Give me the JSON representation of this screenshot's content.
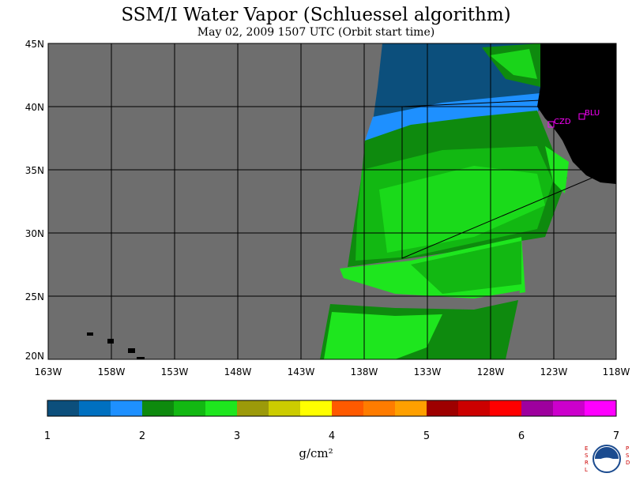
{
  "header": {
    "title": "SSM/I Water Vapor (Schluessel algorithm)",
    "subtitle": "May 02, 2009  1507 UTC  (Orbit start time)"
  },
  "map": {
    "lat_labels": [
      "45N",
      "40N",
      "35N",
      "30N",
      "25N",
      "20N"
    ],
    "lon_labels": [
      "163W",
      "158W",
      "153W",
      "148W",
      "143W",
      "138W",
      "133W",
      "128W",
      "123W",
      "118W"
    ],
    "stations": [
      {
        "code": "CZD",
        "lon": -123.2,
        "lat": 38.6
      },
      {
        "code": "BLU",
        "lon": -120.9,
        "lat": 39.3
      }
    ],
    "colors": {
      "background": "#6e6e6e",
      "land": "#000000",
      "stations": "#ff00ff",
      "grid": "#000000"
    }
  },
  "colorbar": {
    "colors": [
      "#0c4f7c",
      "#0070c0",
      "#1e90ff",
      "#0e8a0e",
      "#12b812",
      "#1ee61e",
      "#9c9a0a",
      "#cccc00",
      "#ffff00",
      "#ff5a00",
      "#ff7c00",
      "#ffa000",
      "#9e0000",
      "#cc0000",
      "#ff0000",
      "#9e009e",
      "#cc00cc",
      "#ff00ff"
    ],
    "tick_labels": [
      "1",
      "2",
      "3",
      "4",
      "5",
      "6",
      "7"
    ],
    "unit": "g/cm²"
  },
  "logo": {
    "left_letters": "ESRL",
    "right_letters": "PSD",
    "center": "NOAA"
  }
}
